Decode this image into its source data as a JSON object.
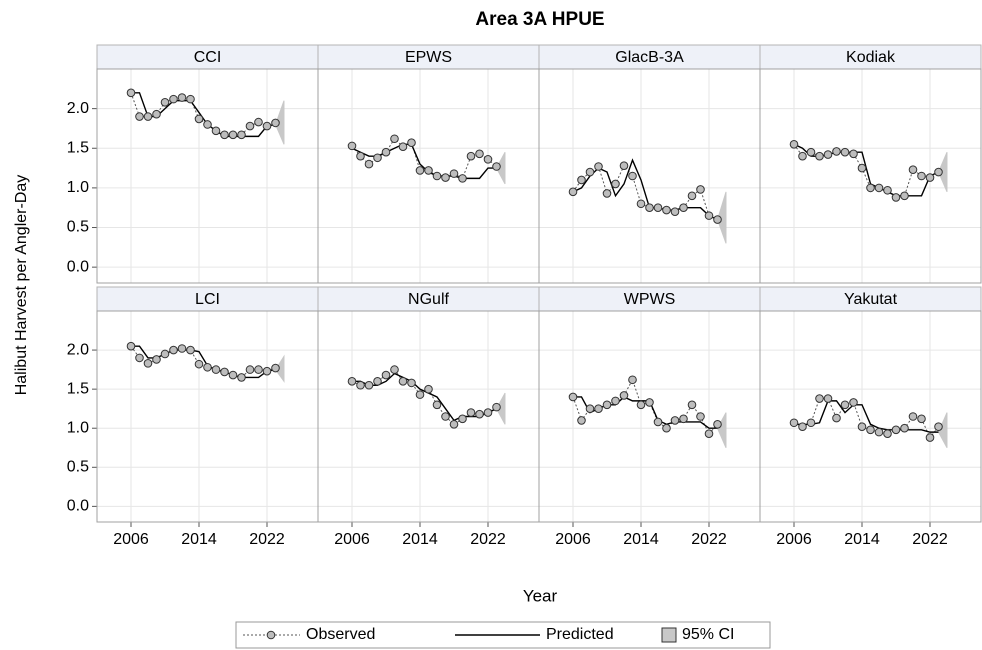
{
  "chart_data": {
    "type": "line",
    "title": "Area 3A HPUE",
    "x_label": "Year",
    "y_label": "Halibut Harvest per Angler-Day",
    "x": [
      2006,
      2007,
      2008,
      2009,
      2010,
      2011,
      2012,
      2013,
      2014,
      2015,
      2016,
      2017,
      2018,
      2019,
      2020,
      2021,
      2022,
      2023
    ],
    "xlim": [
      2002,
      2028
    ],
    "xticks": [
      2006,
      2014,
      2022
    ],
    "ylim": [
      -0.2,
      2.5
    ],
    "yticks": [
      {
        "value": 0,
        "label": "0.0"
      },
      0.5,
      {
        "value": 1,
        "label": "1.0"
      },
      1.5,
      {
        "value": 2,
        "label": "2.0"
      }
    ],
    "grid": true,
    "series": [
      {
        "name": "Observed",
        "color": "#555555"
      },
      {
        "name": "Predicted",
        "color": "#000000"
      },
      {
        "name": "95% CI",
        "color": "#c8c8c8"
      }
    ],
    "panels": [
      {
        "title": "CCI",
        "observed": [
          2.2,
          1.9,
          1.9,
          1.93,
          2.08,
          2.12,
          2.14,
          2.12,
          1.87,
          1.8,
          1.72,
          1.67,
          1.67,
          1.67,
          1.78,
          1.83,
          1.78,
          1.82
        ],
        "predicted": [
          2.2,
          2.2,
          1.9,
          1.9,
          2.0,
          2.1,
          2.1,
          2.1,
          1.95,
          1.8,
          1.72,
          1.65,
          1.65,
          1.65,
          1.65,
          1.65,
          1.78,
          1.8
        ],
        "ci_x": [
          2023,
          2024
        ],
        "ci_lower": [
          1.8,
          1.55
        ],
        "ci_upper": [
          1.8,
          2.1
        ]
      },
      {
        "title": "EPWS",
        "observed": [
          1.53,
          1.4,
          1.3,
          1.38,
          1.45,
          1.62,
          1.52,
          1.57,
          1.22,
          1.22,
          1.15,
          1.13,
          1.18,
          1.12,
          1.4,
          1.43,
          1.36,
          1.27
        ],
        "predicted": [
          1.5,
          1.45,
          1.4,
          1.4,
          1.45,
          1.5,
          1.55,
          1.55,
          1.3,
          1.2,
          1.15,
          1.15,
          1.15,
          1.12,
          1.12,
          1.12,
          1.25,
          1.25
        ],
        "ci_x": [
          2023,
          2024
        ],
        "ci_lower": [
          1.25,
          1.05
        ],
        "ci_upper": [
          1.25,
          1.45
        ]
      },
      {
        "title": "GlacB-3A",
        "observed": [
          0.95,
          1.1,
          1.2,
          1.27,
          0.93,
          1.05,
          1.28,
          1.15,
          0.8,
          0.75,
          0.75,
          0.72,
          0.7,
          0.75,
          0.9,
          0.98,
          0.65,
          0.6
        ],
        "predicted": [
          0.95,
          1.0,
          1.15,
          1.25,
          1.2,
          0.9,
          1.05,
          1.35,
          1.1,
          0.75,
          0.75,
          0.72,
          0.72,
          0.75,
          0.75,
          0.75,
          0.65,
          0.6
        ],
        "ci_x": [
          2023,
          2024
        ],
        "ci_lower": [
          0.6,
          0.3
        ],
        "ci_upper": [
          0.6,
          0.95
        ]
      },
      {
        "title": "Kodiak",
        "observed": [
          1.55,
          1.4,
          1.45,
          1.4,
          1.42,
          1.46,
          1.45,
          1.43,
          1.25,
          1.0,
          1.0,
          0.97,
          0.88,
          0.9,
          1.23,
          1.15,
          1.13,
          1.2
        ],
        "predicted": [
          1.55,
          1.5,
          1.4,
          1.4,
          1.42,
          1.45,
          1.45,
          1.45,
          1.45,
          1.05,
          1.0,
          0.95,
          0.9,
          0.9,
          0.9,
          0.9,
          1.15,
          1.2
        ],
        "ci_x": [
          2023,
          2024
        ],
        "ci_lower": [
          1.2,
          0.95
        ],
        "ci_upper": [
          1.2,
          1.45
        ]
      },
      {
        "title": "LCI",
        "observed": [
          2.05,
          1.9,
          1.83,
          1.88,
          1.95,
          2.0,
          2.02,
          2.0,
          1.82,
          1.78,
          1.75,
          1.72,
          1.68,
          1.65,
          1.75,
          1.75,
          1.73,
          1.77
        ],
        "predicted": [
          2.05,
          2.05,
          1.9,
          1.9,
          1.95,
          2.0,
          2.0,
          2.0,
          1.98,
          1.8,
          1.75,
          1.72,
          1.68,
          1.65,
          1.65,
          1.65,
          1.73,
          1.75
        ],
        "ci_x": [
          2023,
          2024
        ],
        "ci_lower": [
          1.75,
          1.6
        ],
        "ci_upper": [
          1.75,
          1.92
        ]
      },
      {
        "title": "NGulf",
        "observed": [
          1.6,
          1.55,
          1.55,
          1.6,
          1.68,
          1.75,
          1.6,
          1.58,
          1.43,
          1.5,
          1.3,
          1.15,
          1.05,
          1.12,
          1.2,
          1.18,
          1.2,
          1.27
        ],
        "predicted": [
          1.6,
          1.6,
          1.55,
          1.55,
          1.6,
          1.7,
          1.65,
          1.6,
          1.5,
          1.45,
          1.4,
          1.25,
          1.1,
          1.15,
          1.15,
          1.15,
          1.2,
          1.25
        ],
        "ci_x": [
          2023,
          2024
        ],
        "ci_lower": [
          1.25,
          1.05
        ],
        "ci_upper": [
          1.25,
          1.45
        ]
      },
      {
        "title": "WPWS",
        "observed": [
          1.4,
          1.1,
          1.25,
          1.25,
          1.3,
          1.35,
          1.42,
          1.62,
          1.3,
          1.33,
          1.08,
          1.0,
          1.1,
          1.12,
          1.3,
          1.15,
          0.93,
          1.05
        ],
        "predicted": [
          1.4,
          1.4,
          1.2,
          1.25,
          1.3,
          1.3,
          1.4,
          1.35,
          1.35,
          1.35,
          1.1,
          1.05,
          1.08,
          1.08,
          1.08,
          1.08,
          1.0,
          1.0
        ],
        "ci_x": [
          2023,
          2024
        ],
        "ci_lower": [
          1.0,
          0.75
        ],
        "ci_upper": [
          1.0,
          1.2
        ]
      },
      {
        "title": "Yakutat",
        "observed": [
          1.07,
          1.02,
          1.07,
          1.38,
          1.38,
          1.13,
          1.3,
          1.33,
          1.02,
          0.98,
          0.95,
          0.93,
          0.98,
          1.0,
          1.15,
          1.12,
          0.88,
          1.02
        ],
        "predicted": [
          1.05,
          1.05,
          1.05,
          1.07,
          1.35,
          1.35,
          1.2,
          1.3,
          1.3,
          1.05,
          1.0,
          0.98,
          0.98,
          0.98,
          0.98,
          0.98,
          0.95,
          0.95
        ],
        "ci_x": [
          2023,
          2024
        ],
        "ci_lower": [
          0.95,
          0.75
        ],
        "ci_upper": [
          0.95,
          1.2
        ]
      }
    ]
  }
}
